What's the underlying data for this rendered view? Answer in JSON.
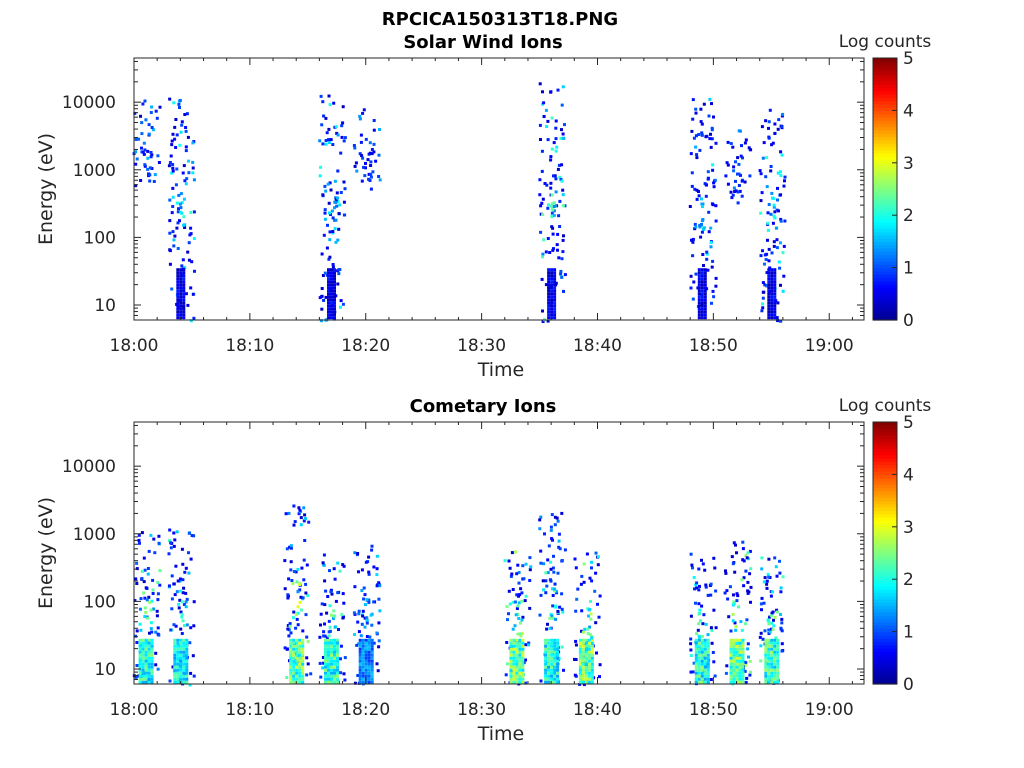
{
  "figure_title": "RPCICA150313T18.PNG",
  "colorbar_label": "Log counts",
  "colorbar_ticks": [
    "0",
    "1",
    "2",
    "3",
    "4",
    "5"
  ],
  "y_ticks": [
    "10",
    "100",
    "1000",
    "10000"
  ],
  "x_ticks": [
    "18:00",
    "18:10",
    "18:20",
    "18:30",
    "18:40",
    "18:50",
    "19:00"
  ],
  "colormap": [
    "#00008f",
    "#0000ff",
    "#0080ff",
    "#00ffff",
    "#80ff80",
    "#ffff00",
    "#ff8000",
    "#ff0000",
    "#800000"
  ],
  "chart_data": [
    {
      "type": "heatmap",
      "title": "Solar Wind Ions",
      "xlabel": "Time",
      "ylabel": "Energy (eV)",
      "y_scale": "log",
      "ylim": [
        6,
        45000
      ],
      "xlim": [
        "18:00",
        "19:03"
      ],
      "clim": [
        0,
        5
      ],
      "colorbar_label": "Log counts",
      "bursts": [
        {
          "time": "18:01",
          "emin": 600,
          "emax": 11000,
          "peak": 1.2
        },
        {
          "time": "18:04",
          "emin": 6,
          "emax": 12000,
          "peak": 2.2
        },
        {
          "time": "18:17",
          "emin": 6,
          "emax": 14000,
          "peak": 2.0
        },
        {
          "time": "18:20",
          "emin": 700,
          "emax": 9000,
          "peak": 1.0
        },
        {
          "time": "18:36",
          "emin": 6,
          "emax": 20000,
          "peak": 2.6
        },
        {
          "time": "18:49",
          "emin": 10,
          "emax": 15000,
          "peak": 1.8
        },
        {
          "time": "18:52",
          "emin": 400,
          "emax": 4000,
          "peak": 1.0
        },
        {
          "time": "18:55",
          "emin": 6,
          "emax": 9000,
          "peak": 2.1
        }
      ]
    },
    {
      "type": "heatmap",
      "title": "Cometary Ions",
      "xlabel": "Time",
      "ylabel": "Energy (eV)",
      "y_scale": "log",
      "ylim": [
        6,
        45000
      ],
      "xlim": [
        "18:00",
        "19:03"
      ],
      "clim": [
        0,
        5
      ],
      "colorbar_label": "Log counts",
      "bursts": [
        {
          "time": "18:01",
          "emin": 6,
          "emax": 1100,
          "peak": 2.6
        },
        {
          "time": "18:04",
          "emin": 6,
          "emax": 1400,
          "peak": 2.4
        },
        {
          "time": "18:14",
          "emin": 6,
          "emax": 2800,
          "peak": 3.0
        },
        {
          "time": "18:17",
          "emin": 6,
          "emax": 600,
          "peak": 2.7
        },
        {
          "time": "18:20",
          "emin": 6,
          "emax": 700,
          "peak": 1.6
        },
        {
          "time": "18:33",
          "emin": 6,
          "emax": 600,
          "peak": 3.0
        },
        {
          "time": "18:36",
          "emin": 6,
          "emax": 2200,
          "peak": 2.5
        },
        {
          "time": "18:39",
          "emin": 6,
          "emax": 600,
          "peak": 3.0
        },
        {
          "time": "18:49",
          "emin": 6,
          "emax": 600,
          "peak": 2.6
        },
        {
          "time": "18:52",
          "emin": 6,
          "emax": 800,
          "peak": 3.0
        },
        {
          "time": "18:55",
          "emin": 6,
          "emax": 500,
          "peak": 2.7
        }
      ]
    }
  ]
}
